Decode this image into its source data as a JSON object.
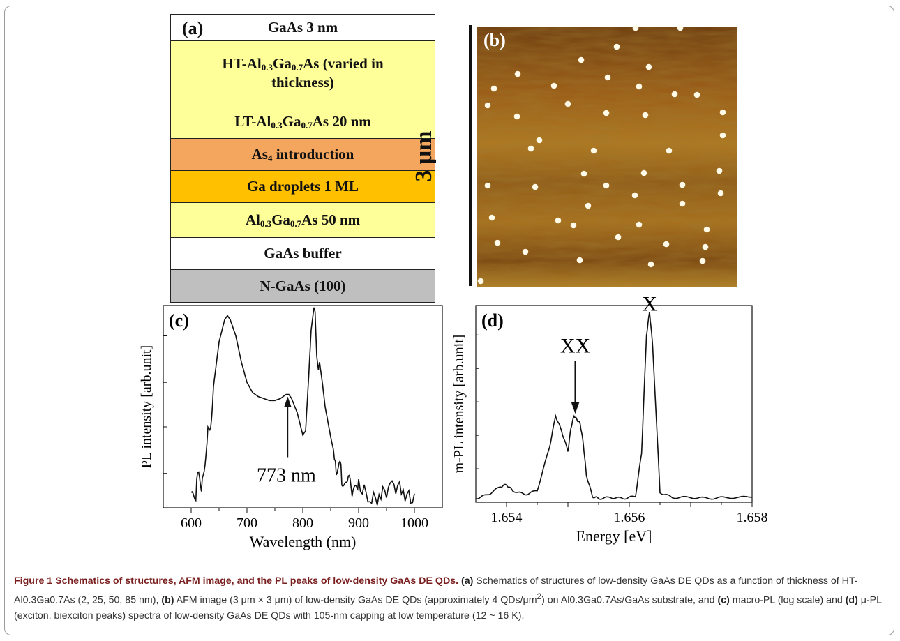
{
  "panel_a": {
    "label": "(a)",
    "layers": [
      {
        "text": "GaAs 3 nm",
        "color": "#ffffff"
      },
      {
        "text": "HT-Al0.3Ga0.7As (varied in thickness)",
        "color": "#ffff99"
      },
      {
        "text": "LT-Al0.3Ga0.7As 20 nm",
        "color": "#ffff99"
      },
      {
        "text": "As4 introduction",
        "color": "#f4a55e"
      },
      {
        "text": "Ga droplets 1 ML",
        "color": "#ffc000"
      },
      {
        "text": "Al0.3Ga0.7As 50 nm",
        "color": "#ffff99"
      },
      {
        "text": "GaAs buffer",
        "color": "#ffffff"
      },
      {
        "text": "N-GaAs (100)",
        "color": "#bfbfbf"
      }
    ]
  },
  "panel_b": {
    "label": "(b)",
    "scale_label": "3 μm"
  },
  "chart_data": [
    {
      "type": "line",
      "panel": "(c)",
      "xlabel": "Wavelength (nm)",
      "ylabel": "PL intensity [arb.unit]",
      "xlim": [
        550,
        1050
      ],
      "x_ticks": [
        600,
        700,
        800,
        900,
        1000
      ],
      "log_scale_y": true,
      "annotation": {
        "text": "773 nm",
        "x": 773
      },
      "x": [
        600,
        610,
        620,
        630,
        640,
        650,
        660,
        665,
        670,
        680,
        690,
        700,
        710,
        720,
        730,
        740,
        750,
        760,
        770,
        775,
        780,
        790,
        800,
        805,
        810,
        815,
        820,
        822,
        825,
        828,
        830,
        835,
        840,
        850,
        860,
        870,
        880,
        890,
        900,
        920,
        940,
        960,
        980,
        1000
      ],
      "y": [
        0.05,
        0.08,
        0.15,
        0.35,
        0.6,
        0.82,
        0.93,
        0.95,
        0.93,
        0.85,
        0.72,
        0.62,
        0.57,
        0.55,
        0.54,
        0.53,
        0.53,
        0.54,
        0.56,
        0.56,
        0.54,
        0.47,
        0.36,
        0.38,
        0.62,
        0.88,
        0.99,
        0.97,
        0.75,
        0.68,
        0.72,
        0.62,
        0.5,
        0.35,
        0.22,
        0.14,
        0.1,
        0.09,
        0.09,
        0.08,
        0.08,
        0.07,
        0.07,
        0.07
      ]
    },
    {
      "type": "line",
      "panel": "(d)",
      "xlabel": "Energy [eV]",
      "ylabel": "m-PL intensity [arb.unit]",
      "xlim": [
        1.6535,
        1.658
      ],
      "x_ticks": [
        1.654,
        1.655,
        1.656,
        1.657,
        1.658
      ],
      "x_tick_labels": [
        "1.654",
        "",
        "1.656",
        "",
        "1.658"
      ],
      "annotations": [
        {
          "text": "XX",
          "x": 1.65512
        },
        {
          "text": "X",
          "x": 1.65633
        }
      ],
      "x": [
        1.6535,
        1.6537,
        1.6539,
        1.654,
        1.6541,
        1.6543,
        1.6545,
        1.6547,
        1.6548,
        1.6549,
        1.655,
        1.65505,
        1.6551,
        1.65515,
        1.6552,
        1.65525,
        1.6553,
        1.6554,
        1.6555,
        1.6557,
        1.6559,
        1.6561,
        1.6562,
        1.65628,
        1.65633,
        1.65638,
        1.6565,
        1.6567,
        1.657,
        1.6573,
        1.6576,
        1.658
      ],
      "y": [
        0.02,
        0.04,
        0.08,
        0.09,
        0.06,
        0.04,
        0.06,
        0.28,
        0.44,
        0.36,
        0.26,
        0.38,
        0.44,
        0.42,
        0.4,
        0.3,
        0.14,
        0.03,
        0.02,
        0.025,
        0.02,
        0.03,
        0.25,
        0.85,
        0.97,
        0.8,
        0.05,
        0.025,
        0.025,
        0.02,
        0.025,
        0.025
      ]
    }
  ],
  "caption": {
    "title": "Figure 1 Schematics of structures, AFM image, and the PL peaks of low-density GaAs DE QDs.",
    "a_label": "(a)",
    "a_text": " Schematics of structures of low-density GaAs DE QDs as a function of thickness of HT-Al0.3Ga0.7As (2, 25, 50, 85 nm), ",
    "b_label": "(b)",
    "b_text_pre": " AFM image (3 μm × 3 μm) of low-density GaAs DE QDs (approximately 4 QDs/μm",
    "b_sup": "2",
    "b_text_post": ") on Al0.3Ga0.7As/GaAs substrate, and ",
    "c_label": "(c)",
    "c_text": " macro-PL (log scale) and ",
    "d_label": "(d)",
    "d_text": " μ-PL (exciton, biexciton peaks) spectra of low-density GaAs DE QDs with 105-nm capping at low temperature (12 ~ 16 K)."
  }
}
